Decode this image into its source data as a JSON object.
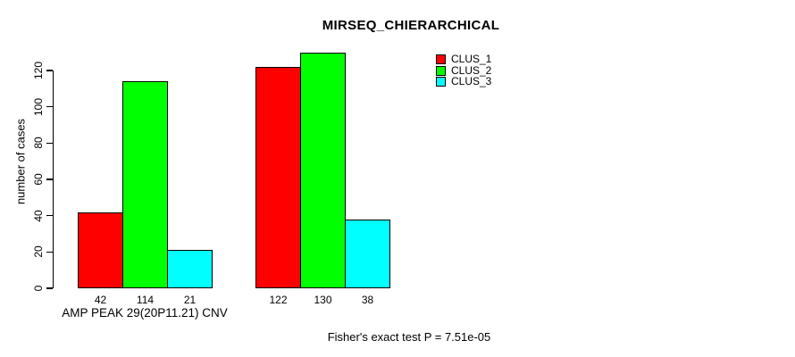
{
  "chart_data": {
    "type": "bar",
    "title": "MIRSEQ_CHIERARCHICAL",
    "ylabel": "number of cases",
    "xlabel": "AMP PEAK 29(20P11.21) CNV",
    "annotation": "Fisher's exact test P = 7.51e-05",
    "ylim": [
      0,
      120
    ],
    "yticks": [
      0,
      20,
      40,
      60,
      80,
      100,
      120
    ],
    "grid": false,
    "legend_position": "top-right",
    "groups": [
      "group-1",
      "group-2"
    ],
    "series": [
      {
        "name": "CLUS_1",
        "color": "#FF0000",
        "values": [
          42,
          122
        ]
      },
      {
        "name": "CLUS_2",
        "color": "#00FF00",
        "values": [
          114,
          130
        ]
      },
      {
        "name": "CLUS_3",
        "color": "#00FFFF",
        "values": [
          21,
          38
        ]
      }
    ],
    "bar_value_labels": [
      [
        42,
        114,
        21
      ],
      [
        122,
        130,
        38
      ]
    ]
  }
}
